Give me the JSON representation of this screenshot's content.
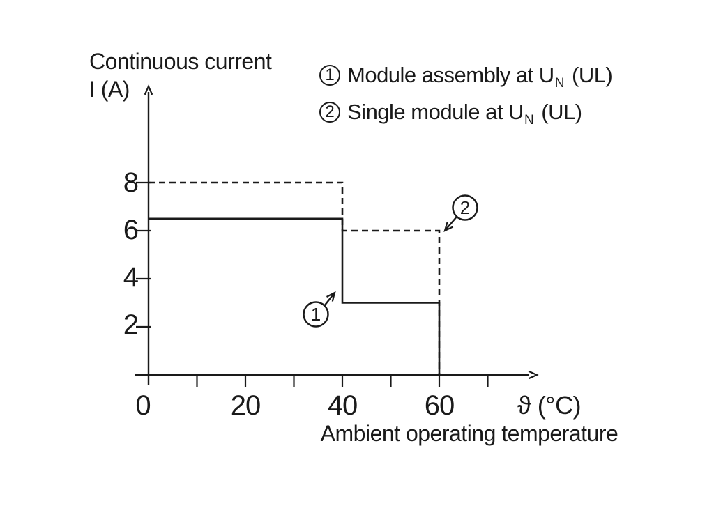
{
  "figure": {
    "y_axis_title_line1": "Continuous current",
    "y_axis_title_line2": "I (A)"
  },
  "legend": {
    "items": [
      {
        "marker": "1",
        "prefix": "Module assembly at U",
        "sub": "N",
        "suffix": "(UL)"
      },
      {
        "marker": "2",
        "prefix": "Single module at U",
        "sub": "N",
        "suffix": "(UL)"
      }
    ]
  },
  "chart_data": {
    "type": "line",
    "title": "",
    "xlabel": "Ambient operating temperature",
    "x_unit": "ϑ (°C)",
    "ylabel": "Continuous current I (A)",
    "xlim": [
      0,
      80
    ],
    "ylim": [
      0,
      10
    ],
    "x_ticks": [
      10,
      20,
      30,
      40,
      50,
      60,
      70
    ],
    "x_tick_labels": [
      "0",
      "20",
      "40",
      "60"
    ],
    "x_labeled_ticks": [
      0,
      20,
      40,
      60
    ],
    "y_ticks": [
      2,
      4,
      6,
      8
    ],
    "y_tick_labels": [
      "2",
      "4",
      "6",
      "8"
    ],
    "grid": false,
    "line_color": "#1a1a1a",
    "series": [
      {
        "name": "Module assembly at UN (UL)",
        "marker": "1",
        "style": "solid",
        "points": [
          [
            0,
            6.5
          ],
          [
            40,
            6.5
          ],
          [
            40,
            3
          ],
          [
            60,
            3
          ],
          [
            60,
            0
          ]
        ]
      },
      {
        "name": "Single module at UN (UL)",
        "marker": "2",
        "style": "dashed",
        "points": [
          [
            0,
            8
          ],
          [
            40,
            8
          ],
          [
            40,
            6
          ],
          [
            60,
            6
          ],
          [
            60,
            0
          ]
        ]
      }
    ],
    "annotations": [
      {
        "label": "1"
      },
      {
        "label": "2"
      }
    ]
  }
}
